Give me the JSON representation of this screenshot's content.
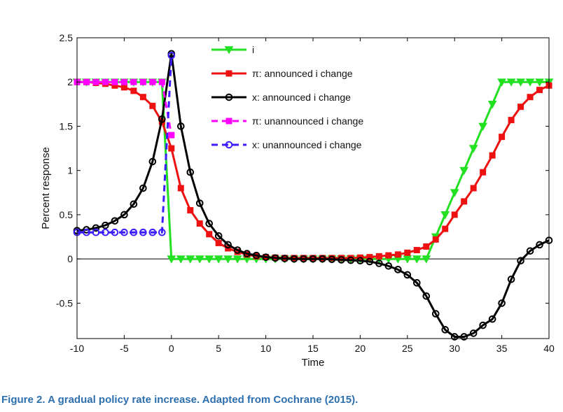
{
  "caption": "Figure 2. A gradual policy rate increase. Adapted from Cochrane (2015).",
  "chart_data": {
    "type": "line",
    "title": "",
    "xlabel": "Time",
    "ylabel": "Percent response",
    "xlim": [
      -10,
      40
    ],
    "ylim": [
      -0.9,
      2.5
    ],
    "xticks": [
      -10,
      -5,
      0,
      5,
      10,
      15,
      20,
      25,
      30,
      35,
      40
    ],
    "yticks": [
      -0.5,
      0,
      0.5,
      1,
      1.5,
      2,
      2.5
    ],
    "ytick_labels": [
      "-0.5",
      "0",
      "0.5",
      "1",
      "1.5",
      "2",
      "2.5"
    ],
    "legend_position": "top-right",
    "reference_line": {
      "y": 0,
      "color": "#000000"
    },
    "series": [
      {
        "name": "i",
        "color": "#22e022",
        "line": "solid",
        "marker": "triangle-down",
        "x": [
          -10,
          -9,
          -8,
          -7,
          -6,
          -5,
          -4,
          -3,
          -2,
          -1,
          0,
          1,
          2,
          3,
          4,
          5,
          6,
          7,
          8,
          9,
          10,
          11,
          12,
          13,
          14,
          15,
          16,
          17,
          18,
          19,
          20,
          21,
          22,
          23,
          24,
          25,
          26,
          27,
          28,
          29,
          30,
          31,
          32,
          33,
          34,
          35,
          36,
          37,
          38,
          39,
          40
        ],
        "values": [
          2,
          2,
          2,
          2,
          2,
          2,
          2,
          2,
          2,
          2,
          0,
          0,
          0,
          0,
          0,
          0,
          0,
          0,
          0,
          0,
          0,
          0,
          0,
          0,
          0,
          0,
          0,
          0,
          0,
          0,
          0,
          0,
          0,
          0,
          0,
          0,
          0,
          0,
          0.25,
          0.5,
          0.75,
          1.0,
          1.25,
          1.5,
          1.75,
          2,
          2,
          2,
          2,
          2,
          2
        ]
      },
      {
        "name": "π: announced i change",
        "color": "#ee1111",
        "line": "solid",
        "marker": "square",
        "x": [
          -10,
          -9,
          -8,
          -7,
          -6,
          -5,
          -4,
          -3,
          -2,
          -1,
          0,
          1,
          2,
          3,
          4,
          5,
          6,
          7,
          8,
          9,
          10,
          11,
          12,
          13,
          14,
          15,
          16,
          17,
          18,
          19,
          20,
          21,
          22,
          23,
          24,
          25,
          26,
          27,
          28,
          29,
          30,
          31,
          32,
          33,
          34,
          35,
          36,
          37,
          38,
          39,
          40
        ],
        "values": [
          2.0,
          2.0,
          1.99,
          1.98,
          1.96,
          1.94,
          1.9,
          1.83,
          1.73,
          1.55,
          1.25,
          0.8,
          0.55,
          0.4,
          0.28,
          0.18,
          0.12,
          0.08,
          0.05,
          0.03,
          0.02,
          0.015,
          0.01,
          0.01,
          0.01,
          0.01,
          0.01,
          0.01,
          0.01,
          0.01,
          0.015,
          0.02,
          0.03,
          0.04,
          0.05,
          0.07,
          0.1,
          0.14,
          0.22,
          0.34,
          0.5,
          0.65,
          0.8,
          0.98,
          1.17,
          1.38,
          1.57,
          1.72,
          1.83,
          1.91,
          1.96
        ]
      },
      {
        "name": "x: announced i change",
        "color": "#000000",
        "line": "solid",
        "marker": "circle",
        "x": [
          -10,
          -9,
          -8,
          -7,
          -6,
          -5,
          -4,
          -3,
          -2,
          -1,
          0,
          1,
          2,
          3,
          4,
          5,
          6,
          7,
          8,
          9,
          10,
          11,
          12,
          13,
          14,
          15,
          16,
          17,
          18,
          19,
          20,
          21,
          22,
          23,
          24,
          25,
          26,
          27,
          28,
          29,
          30,
          31,
          32,
          33,
          34,
          35,
          36,
          37,
          38,
          39,
          40
        ],
        "values": [
          0.32,
          0.33,
          0.35,
          0.38,
          0.43,
          0.5,
          0.62,
          0.8,
          1.1,
          1.58,
          2.32,
          1.5,
          0.98,
          0.63,
          0.4,
          0.26,
          0.16,
          0.1,
          0.06,
          0.04,
          0.02,
          0.01,
          0.005,
          0.0,
          0.0,
          0.0,
          0.0,
          -0.005,
          -0.01,
          -0.015,
          -0.02,
          -0.03,
          -0.05,
          -0.08,
          -0.12,
          -0.18,
          -0.27,
          -0.42,
          -0.62,
          -0.8,
          -0.88,
          -0.88,
          -0.84,
          -0.75,
          -0.68,
          -0.5,
          -0.23,
          -0.02,
          0.09,
          0.16,
          0.21
        ]
      },
      {
        "name": "π: unannounced i change",
        "color": "#ff00ff",
        "line": "dashed",
        "marker": "square",
        "x": [
          -10,
          -9,
          -8,
          -7,
          -6,
          -5,
          -4,
          -3,
          -2,
          -1,
          0
        ],
        "values": [
          2,
          2,
          2,
          2,
          2,
          2,
          2,
          2,
          2,
          2,
          1.4
        ]
      },
      {
        "name": "x: unannounced i change",
        "color": "#3a1cff",
        "line": "dashed",
        "marker": "circle",
        "x": [
          -10,
          -9,
          -8,
          -7,
          -6,
          -5,
          -4,
          -3,
          -2,
          -1,
          0
        ],
        "values": [
          0.3,
          0.3,
          0.3,
          0.3,
          0.3,
          0.3,
          0.3,
          0.3,
          0.3,
          0.3,
          2.3
        ]
      }
    ]
  }
}
